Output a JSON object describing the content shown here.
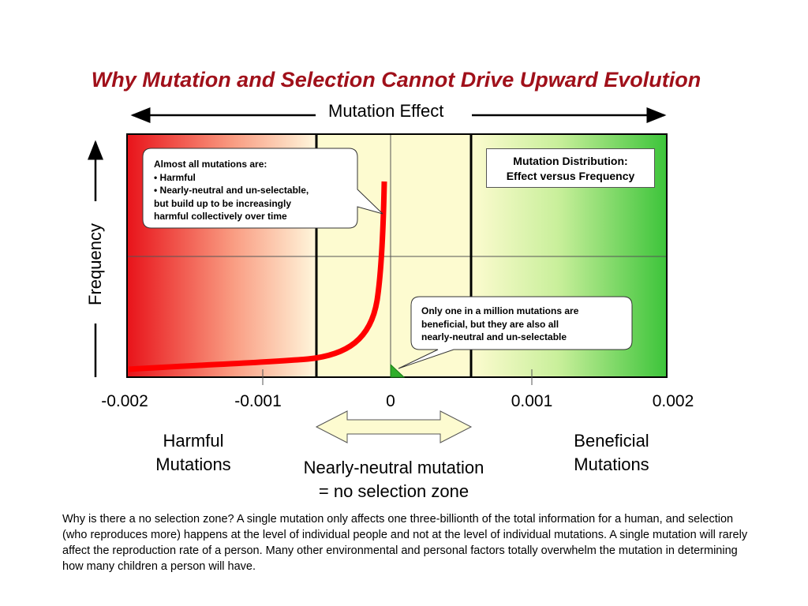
{
  "title": "Why Mutation and Selection Cannot Drive Upward Evolution",
  "x_axis_label": "Mutation Effect",
  "y_axis_label": "Frequency",
  "chart_box_title_line1": "Mutation Distribution:",
  "chart_box_title_line2": "Effect versus Frequency",
  "x_ticks": [
    "-0.002",
    "-0.001",
    "0",
    "0.001",
    "0.002"
  ],
  "callout_harmful": {
    "line1": "Almost all mutations are:",
    "line2": "• Harmful",
    "line3": "• Nearly-neutral and un-selectable,",
    "line4": "but build up to be increasingly",
    "line5": "harmful collectively over time"
  },
  "callout_beneficial": {
    "line1": "Only one in a million mutations are",
    "line2": "beneficial, but they are also all",
    "line3": "nearly-neutral and un-selectable"
  },
  "zone_harmful": {
    "line1": "Harmful",
    "line2": "Mutations"
  },
  "zone_beneficial": {
    "line1": "Beneficial",
    "line2": "Mutations"
  },
  "zone_neutral": {
    "line1": "Nearly-neutral mutation",
    "line2": "= no selection zone"
  },
  "footnote": "Why is there a no selection zone? A single mutation only affects one three-billionth of the total information for a human, and selection (who reproduces more) happens at the level of individual people and not at the level of individual mutations. A single mutation will rarely affect the reproduction rate of a person. Many other environmental and personal factors totally overwhelm the mutation in determining how many children a person will have.",
  "colors": {
    "title": "#a0101a",
    "harmful": "#e8131a",
    "neutral": "#fdfbd0",
    "beneficial": "#3cc43a",
    "curve": "#ff0000"
  }
}
